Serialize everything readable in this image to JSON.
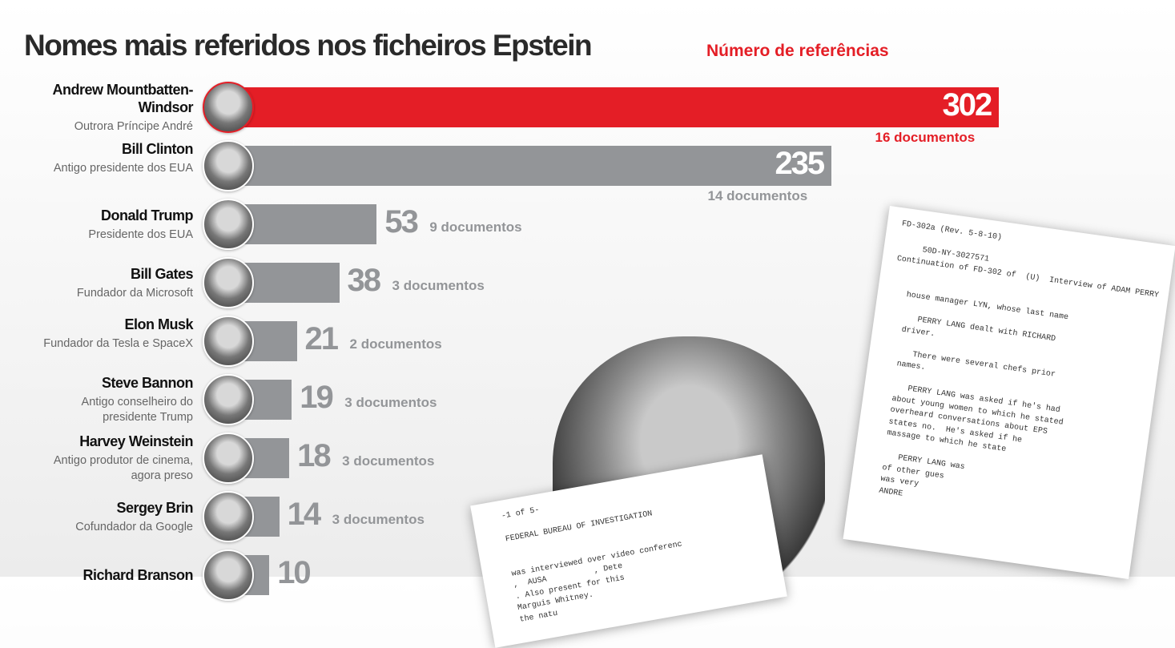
{
  "title": "Nomes mais referidos nos ficheiros Epstein",
  "legend": "Número de referências",
  "colors": {
    "highlight": "#e41e26",
    "bar": "#939598"
  },
  "chart_data": {
    "type": "bar",
    "orientation": "horizontal",
    "title": "Nomes mais referidos nos ficheiros Epstein",
    "ylabel": "Número de referências",
    "categories": [
      "Andrew Mountbatten-Windsor",
      "Bill Clinton",
      "Donald Trump",
      "Bill Gates",
      "Elon Musk",
      "Steve Bannon",
      "Harvey Weinstein",
      "Sergey Brin",
      "Richard Branson"
    ],
    "roles": [
      "Outrora Príncipe André",
      "Antigo presidente dos EUA",
      "Presidente dos EUA",
      "Fundador da Microsoft",
      "Fundador da Tesla e SpaceX",
      "Antigo conselheiro do presidente Trump",
      "Antigo produtor de cinema, agora preso",
      "Cofundador da Google",
      ""
    ],
    "values": [
      302,
      235,
      53,
      38,
      21,
      19,
      18,
      14,
      10
    ],
    "documents": [
      "16 documentos",
      "14 documentos",
      "9 documentos",
      "3 documentos",
      "2 documentos",
      "3 documentos",
      "3 documentos",
      "3 documentos",
      ""
    ],
    "highlight_index": 0
  },
  "doc1": "FD-302a (Rev. 5-8-10)\n\n     50D-NY-3027571\nContinuation of FD-302 of  (U)  Interview of ADAM PERRY\n\n\n   house manager LYN, whose last name\n\n      PERRY LANG dealt with RICHARD\n   driver.\n\n      There were several chefs prior\n   names.\n\n      PERRY LANG was asked if he's had\n   about young women to which he stated\n   overheard conversations about EPS\n   states no.  He's asked if he\n   massage to which he state\n\n      PERRY LANG was\n   of other gues\n   was very\n   ANDRE",
  "doc2": "   -1 of 5-\n\n   FEDERAL BUREAU OF INVESTIGATION\n\n\n   was interviewed over video conferenc\n   ,  AUSA          , Dete\n   . Also present for this\n   Marguis Whitney.\n   the natu"
}
